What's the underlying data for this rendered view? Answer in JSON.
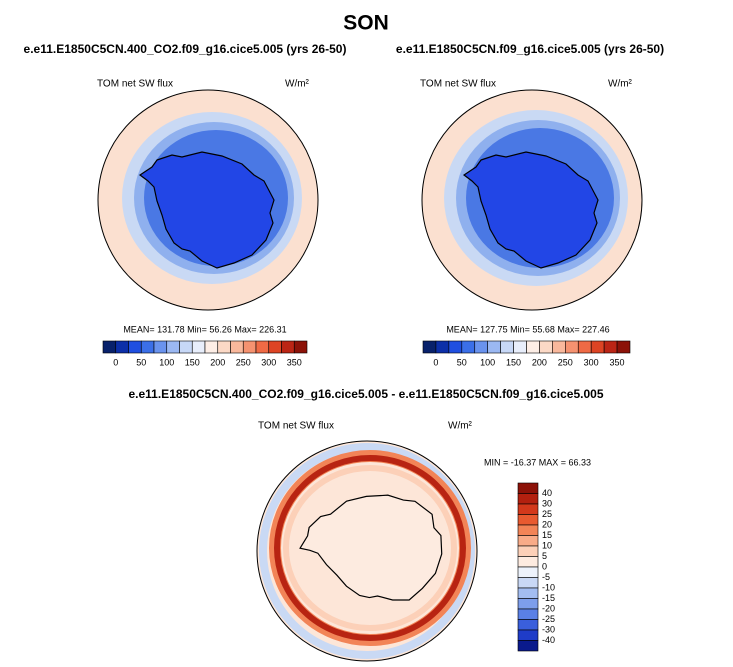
{
  "title": "SON",
  "panels": [
    {
      "title": "e.e11.E1850C5CN.400_CO2.f09_g16.cice5.005 (yrs 26-50)",
      "variable": "TOM net SW flux",
      "units": "W/m²",
      "stats": "MEAN= 131.78  Min= 56.26  Max= 226.31",
      "colorbar": {
        "labels": [
          0,
          50,
          100,
          150,
          200,
          250,
          300,
          350
        ],
        "colors": [
          "#08216b",
          "#0c2fa8",
          "#1f4fe0",
          "#3b6fe8",
          "#6a93ee",
          "#9bb8f2",
          "#c7d8f7",
          "#e8eefb",
          "#fdeee6",
          "#fcd9c6",
          "#f9b89c",
          "#f59270",
          "#ef6a45",
          "#dd4424",
          "#bb2515",
          "#8c1208"
        ]
      }
    },
    {
      "title": "e.e11.E1850C5CN.f09_g16.cice5.005 (yrs 26-50)",
      "variable": "TOM net SW flux",
      "units": "W/m²",
      "stats": "MEAN= 127.75  Min= 55.68  Max= 227.46",
      "colorbar": {
        "labels": [
          0,
          50,
          100,
          150,
          200,
          250,
          300,
          350
        ],
        "colors": [
          "#08216b",
          "#0c2fa8",
          "#1f4fe0",
          "#3b6fe8",
          "#6a93ee",
          "#9bb8f2",
          "#c7d8f7",
          "#e8eefb",
          "#fdeee6",
          "#fcd9c6",
          "#f9b89c",
          "#f59270",
          "#ef6a45",
          "#dd4424",
          "#bb2515",
          "#8c1208"
        ]
      }
    }
  ],
  "difference": {
    "title": "e.e11.E1850C5CN.400_CO2.f09_g16.cice5.005 - e.e11.E1850C5CN.f09_g16.cice5.005",
    "variable": "TOM net SW flux",
    "units": "W/m²",
    "stats": "MIN = -16.37  MAX = 66.33",
    "colorbar": {
      "labels": [
        40,
        30,
        25,
        20,
        15,
        10,
        5,
        0,
        -5,
        -10,
        -15,
        -20,
        -25,
        -30,
        -40
      ],
      "colors": [
        "#8c1208",
        "#b3200f",
        "#d3381b",
        "#e85a30",
        "#f28457",
        "#f8ab88",
        "#fcd0b8",
        "#fdebe0",
        "#edf2fb",
        "#c9d8f5",
        "#a3bdf1",
        "#7d9eeb",
        "#5a80e6",
        "#3a5fdc",
        "#1f3cc8",
        "#0a1a8c"
      ]
    }
  }
}
